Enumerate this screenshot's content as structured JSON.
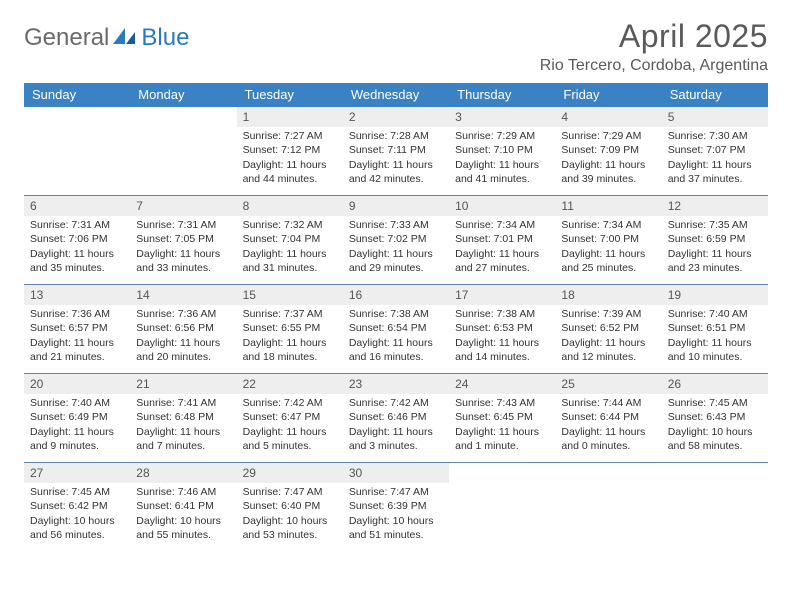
{
  "logo": {
    "general": "General",
    "blue": "Blue"
  },
  "title": "April 2025",
  "location": "Rio Tercero, Cordoba, Argentina",
  "colors": {
    "header_bg": "#3b82c4",
    "header_text": "#ffffff",
    "daynum_bg": "#eeeeee",
    "row_border": "#5e84a8",
    "text": "#333333",
    "title_text": "#5a5a5a",
    "logo_gray": "#6a6a6a",
    "logo_blue": "#2d78c4"
  },
  "day_names": [
    "Sunday",
    "Monday",
    "Tuesday",
    "Wednesday",
    "Thursday",
    "Friday",
    "Saturday"
  ],
  "weeks": [
    [
      null,
      null,
      {
        "n": "1",
        "sr": "Sunrise: 7:27 AM",
        "ss": "Sunset: 7:12 PM",
        "dl": "Daylight: 11 hours and 44 minutes."
      },
      {
        "n": "2",
        "sr": "Sunrise: 7:28 AM",
        "ss": "Sunset: 7:11 PM",
        "dl": "Daylight: 11 hours and 42 minutes."
      },
      {
        "n": "3",
        "sr": "Sunrise: 7:29 AM",
        "ss": "Sunset: 7:10 PM",
        "dl": "Daylight: 11 hours and 41 minutes."
      },
      {
        "n": "4",
        "sr": "Sunrise: 7:29 AM",
        "ss": "Sunset: 7:09 PM",
        "dl": "Daylight: 11 hours and 39 minutes."
      },
      {
        "n": "5",
        "sr": "Sunrise: 7:30 AM",
        "ss": "Sunset: 7:07 PM",
        "dl": "Daylight: 11 hours and 37 minutes."
      }
    ],
    [
      {
        "n": "6",
        "sr": "Sunrise: 7:31 AM",
        "ss": "Sunset: 7:06 PM",
        "dl": "Daylight: 11 hours and 35 minutes."
      },
      {
        "n": "7",
        "sr": "Sunrise: 7:31 AM",
        "ss": "Sunset: 7:05 PM",
        "dl": "Daylight: 11 hours and 33 minutes."
      },
      {
        "n": "8",
        "sr": "Sunrise: 7:32 AM",
        "ss": "Sunset: 7:04 PM",
        "dl": "Daylight: 11 hours and 31 minutes."
      },
      {
        "n": "9",
        "sr": "Sunrise: 7:33 AM",
        "ss": "Sunset: 7:02 PM",
        "dl": "Daylight: 11 hours and 29 minutes."
      },
      {
        "n": "10",
        "sr": "Sunrise: 7:34 AM",
        "ss": "Sunset: 7:01 PM",
        "dl": "Daylight: 11 hours and 27 minutes."
      },
      {
        "n": "11",
        "sr": "Sunrise: 7:34 AM",
        "ss": "Sunset: 7:00 PM",
        "dl": "Daylight: 11 hours and 25 minutes."
      },
      {
        "n": "12",
        "sr": "Sunrise: 7:35 AM",
        "ss": "Sunset: 6:59 PM",
        "dl": "Daylight: 11 hours and 23 minutes."
      }
    ],
    [
      {
        "n": "13",
        "sr": "Sunrise: 7:36 AM",
        "ss": "Sunset: 6:57 PM",
        "dl": "Daylight: 11 hours and 21 minutes."
      },
      {
        "n": "14",
        "sr": "Sunrise: 7:36 AM",
        "ss": "Sunset: 6:56 PM",
        "dl": "Daylight: 11 hours and 20 minutes."
      },
      {
        "n": "15",
        "sr": "Sunrise: 7:37 AM",
        "ss": "Sunset: 6:55 PM",
        "dl": "Daylight: 11 hours and 18 minutes."
      },
      {
        "n": "16",
        "sr": "Sunrise: 7:38 AM",
        "ss": "Sunset: 6:54 PM",
        "dl": "Daylight: 11 hours and 16 minutes."
      },
      {
        "n": "17",
        "sr": "Sunrise: 7:38 AM",
        "ss": "Sunset: 6:53 PM",
        "dl": "Daylight: 11 hours and 14 minutes."
      },
      {
        "n": "18",
        "sr": "Sunrise: 7:39 AM",
        "ss": "Sunset: 6:52 PM",
        "dl": "Daylight: 11 hours and 12 minutes."
      },
      {
        "n": "19",
        "sr": "Sunrise: 7:40 AM",
        "ss": "Sunset: 6:51 PM",
        "dl": "Daylight: 11 hours and 10 minutes."
      }
    ],
    [
      {
        "n": "20",
        "sr": "Sunrise: 7:40 AM",
        "ss": "Sunset: 6:49 PM",
        "dl": "Daylight: 11 hours and 9 minutes."
      },
      {
        "n": "21",
        "sr": "Sunrise: 7:41 AM",
        "ss": "Sunset: 6:48 PM",
        "dl": "Daylight: 11 hours and 7 minutes."
      },
      {
        "n": "22",
        "sr": "Sunrise: 7:42 AM",
        "ss": "Sunset: 6:47 PM",
        "dl": "Daylight: 11 hours and 5 minutes."
      },
      {
        "n": "23",
        "sr": "Sunrise: 7:42 AM",
        "ss": "Sunset: 6:46 PM",
        "dl": "Daylight: 11 hours and 3 minutes."
      },
      {
        "n": "24",
        "sr": "Sunrise: 7:43 AM",
        "ss": "Sunset: 6:45 PM",
        "dl": "Daylight: 11 hours and 1 minute."
      },
      {
        "n": "25",
        "sr": "Sunrise: 7:44 AM",
        "ss": "Sunset: 6:44 PM",
        "dl": "Daylight: 11 hours and 0 minutes."
      },
      {
        "n": "26",
        "sr": "Sunrise: 7:45 AM",
        "ss": "Sunset: 6:43 PM",
        "dl": "Daylight: 10 hours and 58 minutes."
      }
    ],
    [
      {
        "n": "27",
        "sr": "Sunrise: 7:45 AM",
        "ss": "Sunset: 6:42 PM",
        "dl": "Daylight: 10 hours and 56 minutes."
      },
      {
        "n": "28",
        "sr": "Sunrise: 7:46 AM",
        "ss": "Sunset: 6:41 PM",
        "dl": "Daylight: 10 hours and 55 minutes."
      },
      {
        "n": "29",
        "sr": "Sunrise: 7:47 AM",
        "ss": "Sunset: 6:40 PM",
        "dl": "Daylight: 10 hours and 53 minutes."
      },
      {
        "n": "30",
        "sr": "Sunrise: 7:47 AM",
        "ss": "Sunset: 6:39 PM",
        "dl": "Daylight: 10 hours and 51 minutes."
      },
      null,
      null,
      null
    ]
  ]
}
